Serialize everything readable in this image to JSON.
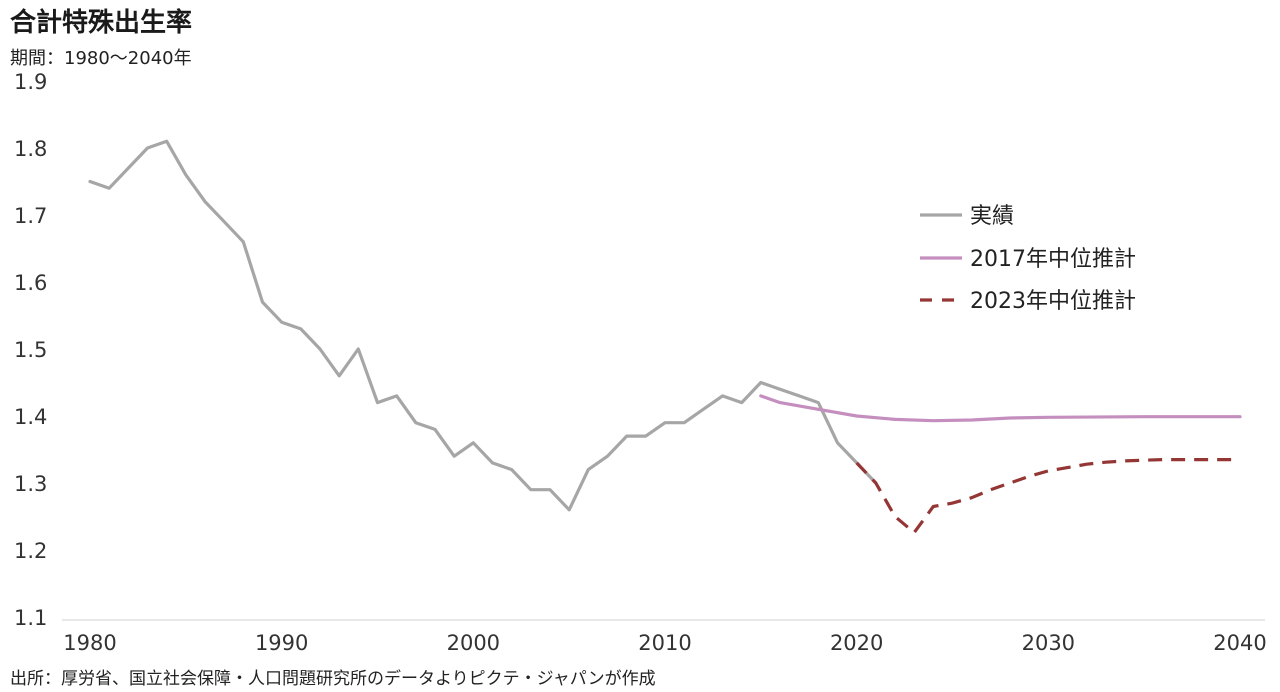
{
  "chart_data": {
    "type": "line",
    "title": "合計特殊出生率",
    "subtitle": "期間：1980～2040年",
    "source": "出所：厚労省、国立社会保障・人口問題研究所のデータよりピクテ・ジャパンが作成",
    "xlabel": "",
    "ylabel": "",
    "xlim": [
      1980,
      2040
    ],
    "ylim": [
      1.1,
      1.9
    ],
    "x_ticks": [
      "1980",
      "1990",
      "2000",
      "2010",
      "2020",
      "2030",
      "2040"
    ],
    "y_ticks": [
      "1.9",
      "1.8",
      "1.7",
      "1.6",
      "1.5",
      "1.4",
      "1.3",
      "1.2",
      "1.1"
    ],
    "grid": false,
    "legend_position": "right",
    "series": [
      {
        "name": "実績",
        "color": "#a6a6a6",
        "style": "solid",
        "x": [
          1980,
          1981,
          1982,
          1983,
          1984,
          1985,
          1986,
          1987,
          1988,
          1989,
          1990,
          1991,
          1992,
          1993,
          1994,
          1995,
          1996,
          1997,
          1998,
          1999,
          2000,
          2001,
          2002,
          2003,
          2004,
          2005,
          2006,
          2007,
          2008,
          2009,
          2010,
          2011,
          2012,
          2013,
          2014,
          2015,
          2016,
          2017,
          2018,
          2019,
          2020,
          2021
        ],
        "values": [
          1.75,
          1.74,
          1.77,
          1.8,
          1.81,
          1.76,
          1.72,
          1.69,
          1.66,
          1.57,
          1.54,
          1.53,
          1.5,
          1.46,
          1.5,
          1.42,
          1.43,
          1.39,
          1.38,
          1.34,
          1.36,
          1.33,
          1.32,
          1.29,
          1.29,
          1.26,
          1.32,
          1.34,
          1.37,
          1.37,
          1.39,
          1.39,
          1.41,
          1.43,
          1.42,
          1.45,
          1.44,
          1.43,
          1.42,
          1.36,
          1.33,
          1.3
        ]
      },
      {
        "name": "2017年中位推計",
        "color": "#c48fbf",
        "style": "solid",
        "x": [
          2015,
          2016,
          2018,
          2020,
          2022,
          2024,
          2026,
          2028,
          2030,
          2035,
          2040
        ],
        "values": [
          1.43,
          1.42,
          1.41,
          1.4,
          1.395,
          1.393,
          1.394,
          1.397,
          1.398,
          1.399,
          1.399
        ]
      },
      {
        "name": "2023年中位推計",
        "color": "#943634",
        "style": "dashed",
        "x": [
          2020,
          2021,
          2022,
          2023,
          2024,
          2025,
          2026,
          2027,
          2028,
          2029,
          2030,
          2031,
          2032,
          2033,
          2034,
          2035,
          2036,
          2037,
          2038,
          2039,
          2040
        ],
        "values": [
          1.33,
          1.3,
          1.25,
          1.226,
          1.265,
          1.27,
          1.278,
          1.29,
          1.3,
          1.31,
          1.318,
          1.323,
          1.328,
          1.331,
          1.333,
          1.334,
          1.335,
          1.335,
          1.335,
          1.335,
          1.335
        ]
      }
    ]
  }
}
